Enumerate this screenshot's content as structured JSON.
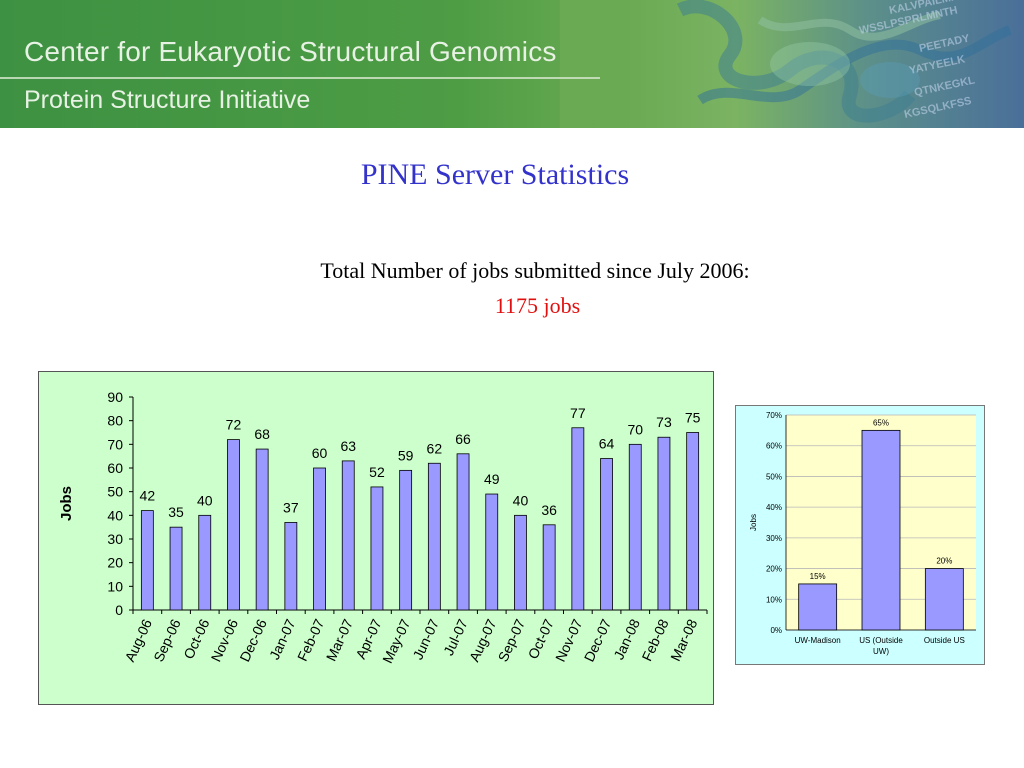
{
  "banner": {
    "line1": "Center for Eukaryotic Structural Genomics",
    "line2": "Protein Structure Initiative",
    "sequence_fragments": [
      "KALVPAILMNTH",
      "WSSLPSPRLMNTH",
      "PEETADY",
      "YATYEELK",
      "QTNKEGKL",
      "KGSQLKFSS"
    ]
  },
  "title": "PINE Server Statistics",
  "summary_text": "Total Number of jobs submitted since July 2006:",
  "total_text": "1175 jobs",
  "colors": {
    "title": "#3333cc",
    "total": "#e01010",
    "bar": "#9999ff",
    "plot_bg": "#ffffcc",
    "left_bg": "#ccffcc",
    "right_bg": "#ccffff"
  },
  "chart_data": [
    {
      "type": "bar",
      "ylabel": "Jobs",
      "xlabel": "",
      "ylim": [
        0,
        90
      ],
      "yticks": [
        0,
        10,
        20,
        30,
        40,
        50,
        60,
        70,
        80,
        90
      ],
      "categories": [
        "Aug-06",
        "Sep-06",
        "Oct-06",
        "Nov-06",
        "Dec-06",
        "Jan-07",
        "Feb-07",
        "Mar-07",
        "Apr-07",
        "May-07",
        "Jun-07",
        "Jul-07",
        "Aug-07",
        "Sep-07",
        "Oct-07",
        "Nov-07",
        "Dec-07",
        "Jan-08",
        "Feb-08",
        "Mar-08"
      ],
      "values": [
        42,
        35,
        40,
        72,
        68,
        37,
        60,
        63,
        52,
        59,
        62,
        66,
        49,
        40,
        36,
        77,
        64,
        70,
        73,
        75
      ],
      "grid": false,
      "data_labels": true
    },
    {
      "type": "bar",
      "ylabel": "Jobs",
      "xlabel": "",
      "ylim": [
        0,
        70
      ],
      "yticks": [
        "0%",
        "10%",
        "20%",
        "30%",
        "40%",
        "50%",
        "60%",
        "70%"
      ],
      "categories": [
        [
          "UW-Madison"
        ],
        [
          "US (Outside",
          "UW)"
        ],
        [
          "Outside US"
        ]
      ],
      "values": [
        15,
        65,
        20
      ],
      "value_labels": [
        "15%",
        "65%",
        "20%"
      ],
      "grid": true,
      "data_labels": true
    }
  ]
}
